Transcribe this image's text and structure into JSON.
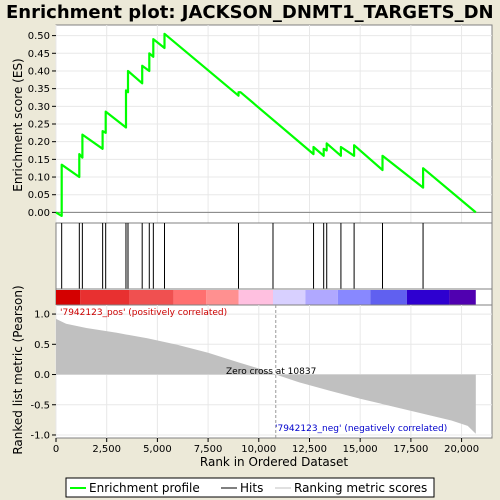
{
  "chart_data": {
    "type": "line",
    "title": "Enrichment plot: JACKSON_DNMT1_TARGETS_DN",
    "xlabel": "Rank in Ordered Dataset",
    "ylabel_top": "Enrichment score (ES)",
    "ylabel_bottom": "Ranked list metric (Pearson)",
    "xlim": [
      0,
      21500
    ],
    "x_ticks": [
      "0",
      "2,500",
      "5,000",
      "7,500",
      "10,000",
      "12,500",
      "15,000",
      "17,500",
      "20,000"
    ],
    "x_tick_values": [
      0,
      2500,
      5000,
      7500,
      10000,
      12500,
      15000,
      17500,
      20000
    ],
    "es_ylim": [
      -0.03,
      0.53
    ],
    "es_ticks": [
      "0.00",
      "0.05",
      "0.10",
      "0.15",
      "0.20",
      "0.25",
      "0.30",
      "0.35",
      "0.40",
      "0.45",
      "0.50"
    ],
    "es_tick_values": [
      0,
      0.05,
      0.1,
      0.15,
      0.2,
      0.25,
      0.3,
      0.35,
      0.4,
      0.45,
      0.5
    ],
    "metric_ylim": [
      -1.05,
      1.15
    ],
    "metric_ticks": [
      "1.0",
      "0.5",
      "0.0",
      "-0.5",
      "-1.0"
    ],
    "metric_tick_values": [
      1.0,
      0.5,
      0.0,
      -0.5,
      -1.0
    ],
    "series": [
      {
        "name": "Enrichment profile",
        "color": "#00ff00",
        "x": [
          0,
          280,
          280,
          1150,
          1150,
          1300,
          1300,
          2300,
          2300,
          2450,
          2450,
          3450,
          3450,
          3550,
          3550,
          4250,
          4250,
          4600,
          4600,
          4800,
          4800,
          5350,
          5350,
          9000,
          9000,
          9100,
          12700,
          12700,
          13200,
          13200,
          13350,
          13350,
          14050,
          14050,
          14700,
          14700,
          16100,
          16100,
          18100,
          18100,
          20700
        ],
        "y": [
          0,
          -0.01,
          0.135,
          0.1,
          0.165,
          0.155,
          0.22,
          0.18,
          0.23,
          0.225,
          0.285,
          0.24,
          0.345,
          0.34,
          0.4,
          0.365,
          0.415,
          0.4,
          0.45,
          0.44,
          0.49,
          0.465,
          0.505,
          0.33,
          0.34,
          0.34,
          0.165,
          0.185,
          0.16,
          0.18,
          0.175,
          0.195,
          0.16,
          0.185,
          0.16,
          0.19,
          0.12,
          0.16,
          0.07,
          0.125,
          0.0
        ]
      }
    ],
    "hits": [
      280,
      1150,
      1300,
      2300,
      2450,
      3450,
      3550,
      4250,
      4600,
      4800,
      5350,
      9000,
      10700,
      12700,
      13200,
      13350,
      14050,
      14700,
      16100,
      18100
    ],
    "metric": {
      "name": "Ranking metric scores",
      "color": "#c0c0c0",
      "x": [
        0,
        500,
        1500,
        3000,
        4500,
        6000,
        7500,
        9000,
        10000,
        10837,
        12000,
        13500,
        15000,
        16500,
        18000,
        19500,
        20300,
        20700
      ],
      "y": [
        0.92,
        0.84,
        0.77,
        0.69,
        0.6,
        0.49,
        0.36,
        0.2,
        0.1,
        0.0,
        -0.13,
        -0.27,
        -0.4,
        -0.52,
        -0.64,
        -0.76,
        -0.85,
        -0.98
      ]
    },
    "zero_cross_x": 10837,
    "zero_cross_label": "Zero cross at 10837",
    "pos_label": "'7942123_pos' (positively correlated)",
    "neg_label": "'7942123_neg' (negatively correlated)",
    "pos_label_color": "#cc0000",
    "neg_label_color": "#0000cc",
    "heatmap_colors": [
      "#d40000",
      "#e83030",
      "#f05050",
      "#ff7070",
      "#ff9090",
      "#ffc0e0",
      "#d8d0ff",
      "#b0a8ff",
      "#8888ff",
      "#6060f0",
      "#2e00d0",
      "#5000b0"
    ],
    "heatmap_stops": [
      0,
      1200,
      3600,
      5800,
      7400,
      9000,
      10700,
      12300,
      13900,
      15500,
      17300,
      19400,
      20700
    ],
    "legend": [
      "Enrichment profile",
      "Hits",
      "Ranking metric scores"
    ]
  }
}
